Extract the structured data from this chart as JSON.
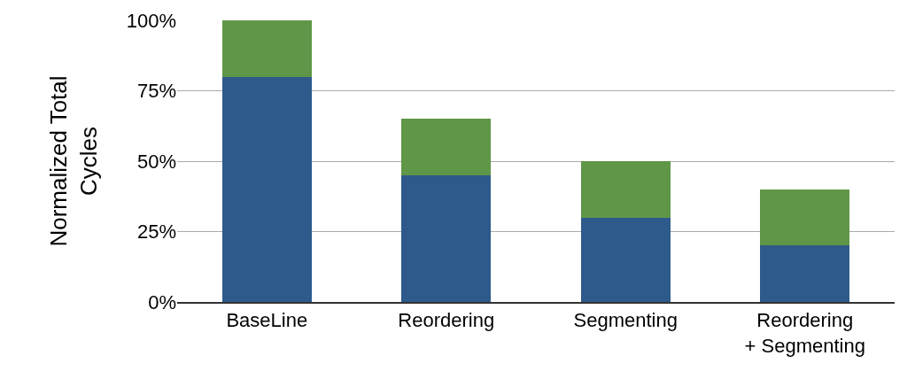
{
  "chart_data": {
    "type": "bar",
    "stacked": true,
    "ylabel": "Normalized Total\nCycles",
    "categories": [
      "BaseLine",
      "Reordering",
      "Segmenting",
      "Reordering\n+ Segmenting"
    ],
    "series": [
      {
        "color": "#2e5a8b",
        "values": [
          80,
          45,
          30,
          20
        ]
      },
      {
        "color": "#5f9647",
        "values": [
          20,
          20,
          20,
          20
        ]
      }
    ],
    "ylim": [
      0,
      100
    ],
    "yticks": [
      {
        "value": 0,
        "label": "0%"
      },
      {
        "value": 25,
        "label": "25%"
      },
      {
        "value": 50,
        "label": "50%"
      },
      {
        "value": 75,
        "label": "75%"
      },
      {
        "value": 100,
        "label": "100%"
      }
    ],
    "grid": "y",
    "legend": false
  }
}
